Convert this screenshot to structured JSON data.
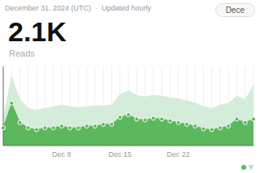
{
  "chart_data": {
    "type": "area",
    "title": "2.1K",
    "subtitle": "Reads",
    "annotations": [
      "December 31, 2024 (UTC)  ·  Updated hourly",
      "Dece"
    ],
    "categories": [
      null,
      null,
      null,
      null,
      null,
      null,
      null,
      "Dec 8",
      null,
      null,
      null,
      null,
      null,
      null,
      "Dec 15",
      null,
      null,
      null,
      null,
      null,
      null,
      "Dec 22",
      null,
      null,
      null,
      null,
      null,
      null,
      null,
      null,
      null
    ],
    "series": [
      {
        "values": [
          30,
          78,
          52,
          42,
          40,
          42,
          44,
          46,
          44,
          43,
          44,
          45,
          45,
          46,
          58,
          62,
          57,
          55,
          57,
          56,
          54,
          53,
          51,
          48,
          44,
          42,
          46,
          48,
          56,
          52,
          68
        ],
        "color": "#d4edda"
      },
      {
        "name": "Y",
        "values": [
          20,
          48,
          26,
          20,
          18,
          20,
          20,
          22,
          20,
          20,
          22,
          22,
          24,
          24,
          32,
          35,
          30,
          29,
          31,
          30,
          28,
          26,
          24,
          22,
          19,
          18,
          20,
          22,
          30,
          26,
          30
        ],
        "color": "#5cb85c",
        "marker": "circle"
      }
    ],
    "ylim": [
      0,
      90
    ],
    "grid": true,
    "legend": "lower right",
    "tick_labels": "x"
  }
}
